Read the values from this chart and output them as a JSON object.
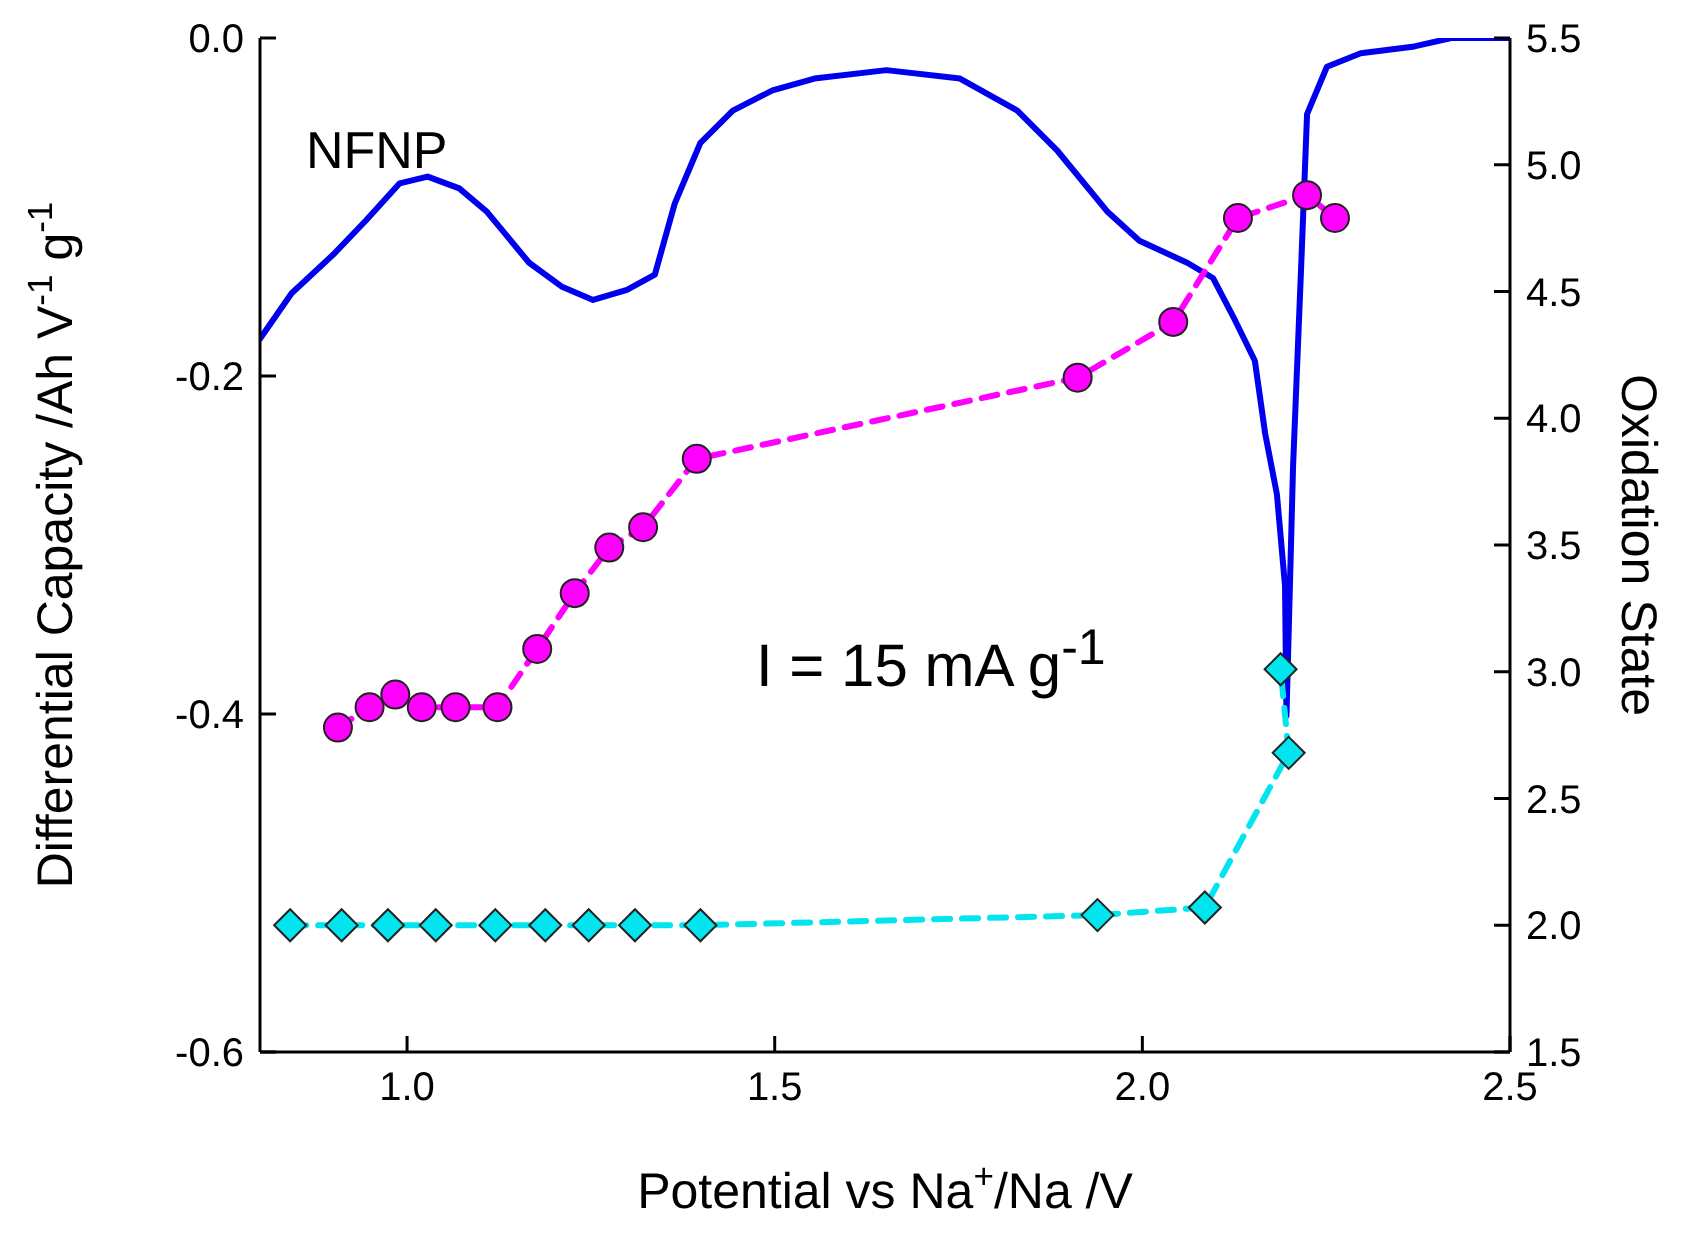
{
  "chart_data": {
    "type": "line",
    "xlabel": "Potential vs Na$^{+}$/Na /V",
    "ylabel": "Differential Capacity /Ah V$^{-1}$ g$^{-1}$",
    "y2label": "Oxidation State",
    "annotations": [
      "NFNP",
      "I = 15 mA g$^{-1}$"
    ],
    "xlim": [
      0.8,
      2.5
    ],
    "xticks": [
      {
        "value": 1,
        "label": "1.0"
      },
      1.5,
      {
        "value": 2,
        "label": "2.0"
      },
      2.5
    ],
    "ylim": [
      -0.6,
      0
    ],
    "yticks": [
      -0.6,
      -0.4,
      -0.2,
      {
        "value": 0,
        "label": "0.0"
      }
    ],
    "y2lim": [
      1.5,
      5.5
    ],
    "y2ticks": [
      1.5,
      {
        "value": 2,
        "label": "2.0"
      },
      2.5,
      {
        "value": 3,
        "label": "3.0"
      },
      3.5,
      {
        "value": 4,
        "label": "4.0"
      },
      4.5,
      {
        "value": 5,
        "label": "5.0"
      },
      5.5
    ],
    "grid": false,
    "legend": false,
    "series": [
      {
        "color": "#0000ee",
        "marker": "none",
        "line_style": "solid",
        "x": [
          0.8,
          0.843,
          0.9,
          0.944,
          0.99,
          1.028,
          1.071,
          1.109,
          1.166,
          1.21,
          1.253,
          1.299,
          1.337,
          1.364,
          1.399,
          1.443,
          1.497,
          1.554,
          1.652,
          1.752,
          1.83,
          1.885,
          1.953,
          1.996,
          2.061,
          2.096,
          2.126,
          2.153,
          2.167,
          2.183,
          2.194,
          2.196,
          2.205,
          2.216,
          2.224,
          2.251,
          2.297,
          2.37,
          2.42,
          2.5
        ],
        "values": [
          -0.178,
          -0.151,
          -0.128,
          -0.108,
          -0.086,
          -0.082,
          -0.089,
          -0.103,
          -0.133,
          -0.147,
          -0.155,
          -0.149,
          -0.14,
          -0.098,
          -0.062,
          -0.043,
          -0.031,
          -0.024,
          -0.019,
          -0.024,
          -0.043,
          -0.067,
          -0.103,
          -0.12,
          -0.133,
          -0.142,
          -0.167,
          -0.191,
          -0.234,
          -0.27,
          -0.324,
          -0.401,
          -0.253,
          -0.135,
          -0.045,
          -0.017,
          -0.009,
          -0.005,
          0,
          0
        ]
      },
      {
        "color": "#ff00ff",
        "marker": "circle",
        "line_style": "dashed",
        "axis": "y2",
        "x": [
          0.906,
          0.949,
          0.984,
          1.02,
          1.066,
          1.123,
          1.177,
          1.228,
          1.275,
          1.321,
          1.394,
          1.912,
          2.042,
          2.13,
          2.224,
          2.262
        ],
        "values": [
          2.78,
          2.86,
          2.91,
          2.86,
          2.86,
          2.86,
          3.09,
          3.31,
          3.49,
          3.57,
          3.84,
          4.16,
          4.38,
          4.79,
          4.88,
          4.79
        ]
      },
      {
        "color": "#00e5ee",
        "marker": "diamond",
        "line_style": "dashed",
        "axis": "y2",
        "x": [
          0.841,
          0.911,
          0.974,
          1.039,
          1.12,
          1.188,
          1.247,
          1.31,
          1.399,
          1.939,
          2.085,
          2.199,
          2.188
        ],
        "values": [
          2.0,
          2.0,
          2.0,
          2.0,
          2.0,
          2.0,
          2.0,
          2.0,
          2.0,
          2.04,
          2.07,
          2.68,
          3.01
        ]
      }
    ]
  }
}
